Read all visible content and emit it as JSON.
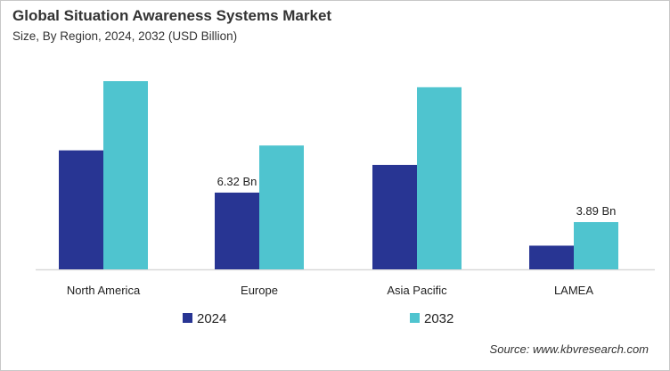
{
  "chart_data": {
    "type": "bar",
    "title": "Global Situation Awareness Systems Market",
    "subtitle": "Size, By Region, 2024, 2032 (USD Billion)",
    "categories": [
      "North America",
      "Europe",
      "Asia Pacific",
      "LAMEA"
    ],
    "series": [
      {
        "name": "2024",
        "color": "#283593",
        "values": [
          9.8,
          6.32,
          8.6,
          1.95
        ]
      },
      {
        "name": "2032",
        "color": "#4fc4cf",
        "values": [
          15.5,
          10.2,
          15.0,
          3.89
        ]
      }
    ],
    "data_labels": [
      {
        "series": 0,
        "category": 1,
        "text": "6.32 Bn"
      },
      {
        "series": 1,
        "category": 3,
        "text": "3.89 Bn"
      }
    ],
    "ylim": [
      0,
      15.5
    ],
    "grid": false,
    "legend_placement": "bottom",
    "source": "Source: www.kbvresearch.com"
  }
}
